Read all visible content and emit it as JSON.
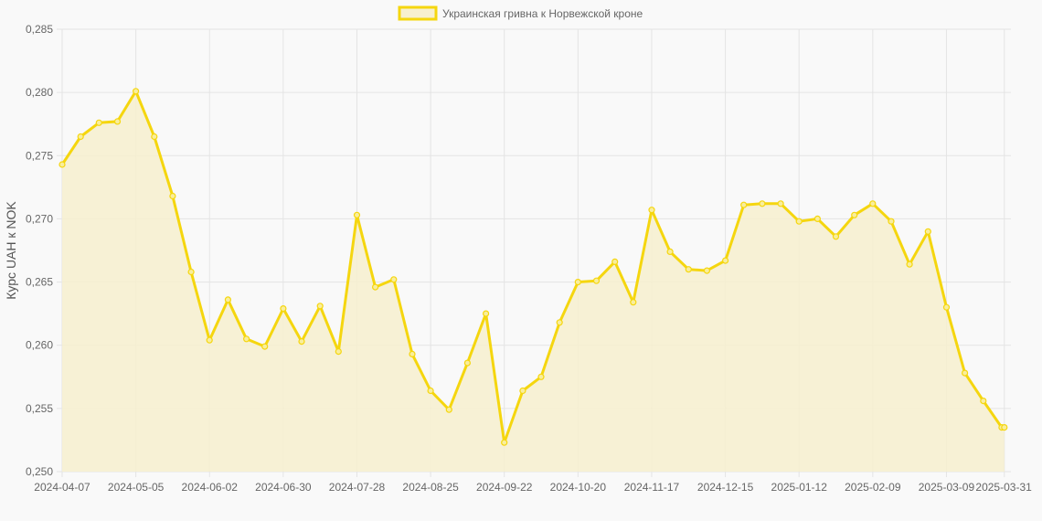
{
  "chart_data": {
    "type": "line",
    "ylabel": "Курс UAH к NOK",
    "ylim": [
      0.25,
      0.285
    ],
    "yticks": [
      "0,250",
      "0,255",
      "0,260",
      "0,265",
      "0,270",
      "0,275",
      "0,280",
      "0,285"
    ],
    "xtick_labels": [
      "2024-04-07",
      "2024-05-05",
      "2024-06-02",
      "2024-06-30",
      "2024-07-28",
      "2024-08-25",
      "2024-09-22",
      "2024-10-20",
      "2024-11-17",
      "2024-12-15",
      "2025-01-12",
      "2025-02-09",
      "2025-03-09",
      "2025-03-31"
    ],
    "legend_position": "top-center",
    "grid": true,
    "colors": {
      "line": "#f5d60f",
      "fill": "#f7f0cf",
      "grid": "#e4e4e4",
      "point_fill": "#f9ee9c"
    },
    "series": [
      {
        "name": "Украинская гривна к Норвежской кроне",
        "x": [
          "2024-04-07",
          "2024-04-14",
          "2024-04-21",
          "2024-04-28",
          "2024-05-05",
          "2024-05-12",
          "2024-05-19",
          "2024-05-26",
          "2024-06-02",
          "2024-06-09",
          "2024-06-16",
          "2024-06-23",
          "2024-06-30",
          "2024-07-07",
          "2024-07-14",
          "2024-07-21",
          "2024-07-28",
          "2024-08-04",
          "2024-08-11",
          "2024-08-18",
          "2024-08-25",
          "2024-09-01",
          "2024-09-08",
          "2024-09-15",
          "2024-09-22",
          "2024-09-29",
          "2024-10-06",
          "2024-10-13",
          "2024-10-20",
          "2024-10-27",
          "2024-11-03",
          "2024-11-10",
          "2024-11-17",
          "2024-11-24",
          "2024-12-01",
          "2024-12-08",
          "2024-12-15",
          "2024-12-22",
          "2024-12-29",
          "2025-01-05",
          "2025-01-12",
          "2025-01-19",
          "2025-01-26",
          "2025-02-02",
          "2025-02-09",
          "2025-02-16",
          "2025-02-23",
          "2025-03-02",
          "2025-03-09",
          "2025-03-16",
          "2025-03-23",
          "2025-03-30",
          "2025-03-31"
        ],
        "values": [
          0.2743,
          0.2765,
          0.2776,
          0.2777,
          0.2801,
          0.2765,
          0.2718,
          0.2658,
          0.2604,
          0.2636,
          0.2605,
          0.2599,
          0.2629,
          0.2603,
          0.2631,
          0.2595,
          0.2703,
          0.2646,
          0.2652,
          0.2593,
          0.2564,
          0.2549,
          0.2586,
          0.2625,
          0.2523,
          0.2564,
          0.2575,
          0.2618,
          0.265,
          0.2651,
          0.2666,
          0.2634,
          0.2707,
          0.2674,
          0.266,
          0.2659,
          0.2667,
          0.2711,
          0.2712,
          0.2712,
          0.2698,
          0.27,
          0.2686,
          0.2703,
          0.2712,
          0.2698,
          0.2664,
          0.269,
          0.263,
          0.2578,
          0.2556,
          0.2535,
          0.2535
        ]
      }
    ]
  }
}
